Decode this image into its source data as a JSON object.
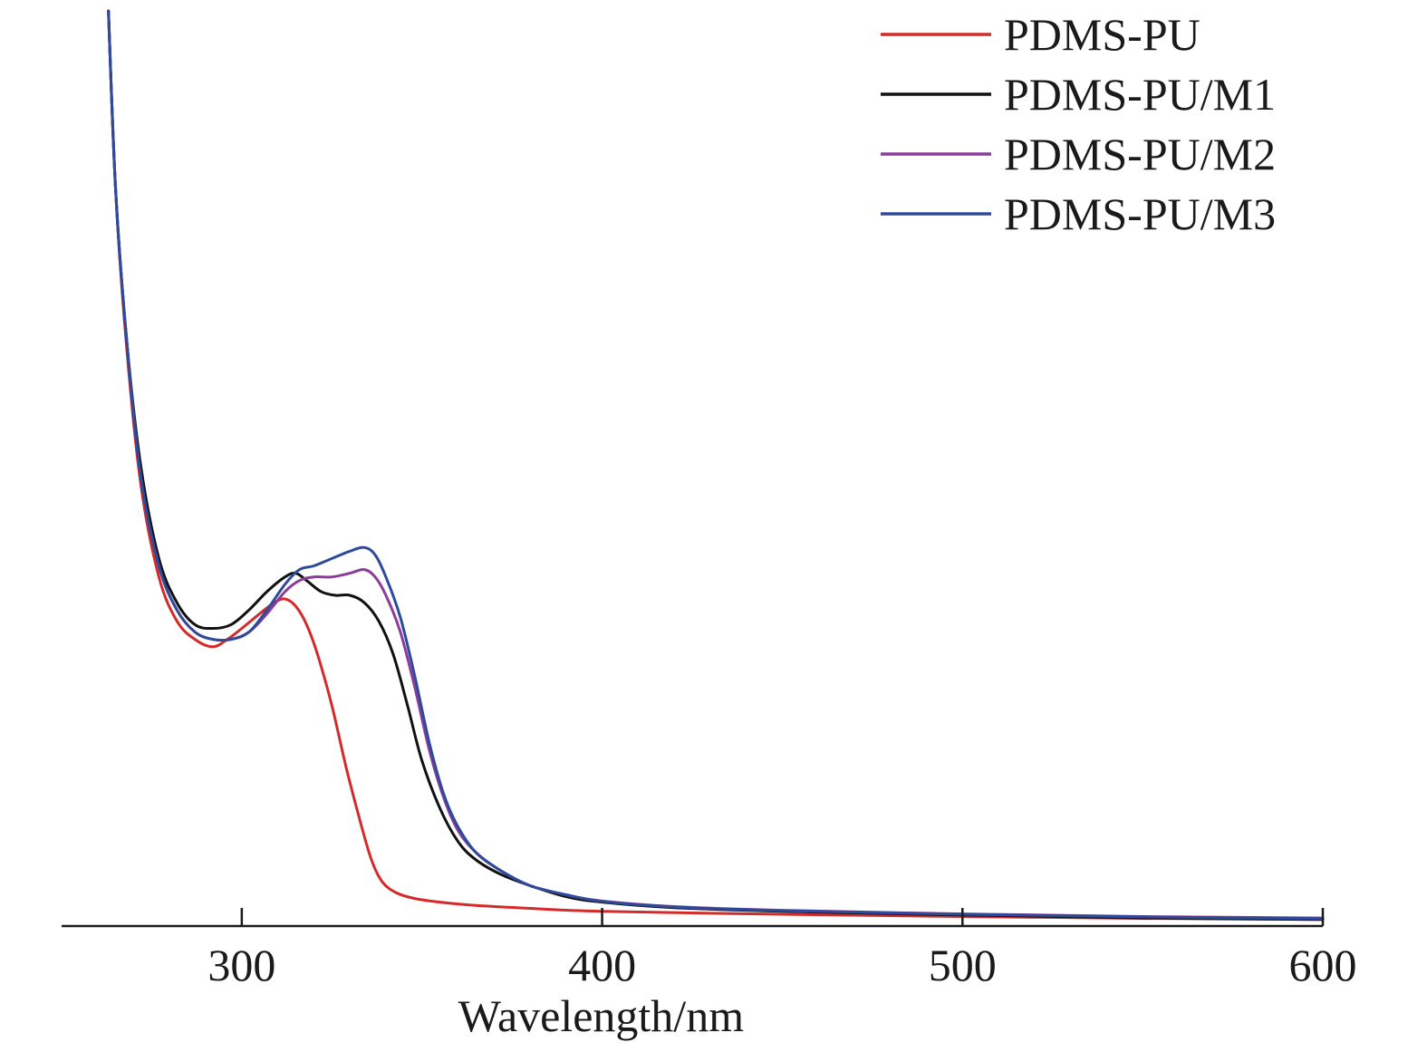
{
  "chart_data": {
    "type": "line",
    "title": "",
    "xlabel": "Wavelength/nm",
    "ylabel": "",
    "xlim": [
      250,
      600
    ],
    "ylim": [
      0,
      2.5
    ],
    "xticks": [
      300,
      400,
      500,
      600
    ],
    "xtick_labels": [
      "300",
      "400",
      "500",
      "600"
    ],
    "grid": false,
    "legend_position": "top-right",
    "series": [
      {
        "name": "PDMS-PU",
        "color": "#d42a2a",
        "x": [
          263,
          265,
          268,
          272,
          277,
          282,
          287,
          292,
          296,
          300,
          305,
          309,
          312,
          315,
          318,
          321,
          325,
          329,
          333,
          336,
          339,
          343,
          348,
          355,
          365,
          380,
          400,
          450,
          500,
          550,
          600
        ],
        "y": [
          2.49,
          2.0,
          1.58,
          1.2,
          0.95,
          0.83,
          0.78,
          0.76,
          0.78,
          0.81,
          0.85,
          0.88,
          0.89,
          0.87,
          0.82,
          0.74,
          0.6,
          0.43,
          0.28,
          0.18,
          0.12,
          0.09,
          0.075,
          0.065,
          0.056,
          0.048,
          0.04,
          0.032,
          0.026,
          0.021,
          0.018
        ]
      },
      {
        "name": "PDMS-PU/M1",
        "color": "#111111",
        "x": [
          263,
          265,
          268,
          272,
          277,
          282,
          287,
          292,
          297,
          302,
          307,
          312,
          315,
          318,
          322,
          326,
          330,
          334,
          338,
          342,
          346,
          350,
          355,
          360,
          365,
          372,
          380,
          390,
          400,
          420,
          450,
          500,
          550,
          600
        ],
        "y": [
          2.49,
          2.0,
          1.6,
          1.25,
          1.0,
          0.88,
          0.82,
          0.81,
          0.82,
          0.86,
          0.91,
          0.95,
          0.96,
          0.94,
          0.91,
          0.9,
          0.9,
          0.88,
          0.83,
          0.74,
          0.6,
          0.45,
          0.32,
          0.23,
          0.18,
          0.14,
          0.11,
          0.08,
          0.065,
          0.05,
          0.04,
          0.03,
          0.022,
          0.018
        ]
      },
      {
        "name": "PDMS-PU/M2",
        "color": "#8c3c9a",
        "x": [
          263,
          265,
          268,
          272,
          277,
          282,
          287,
          292,
          297,
          302,
          307,
          312,
          316,
          320,
          325,
          330,
          334,
          337,
          340,
          344,
          348,
          352,
          356,
          360,
          365,
          372,
          380,
          390,
          400,
          420,
          450,
          500,
          550,
          600
        ],
        "y": [
          2.49,
          2.0,
          1.6,
          1.22,
          0.98,
          0.86,
          0.8,
          0.78,
          0.78,
          0.8,
          0.85,
          0.91,
          0.94,
          0.95,
          0.95,
          0.96,
          0.97,
          0.95,
          0.9,
          0.8,
          0.65,
          0.48,
          0.35,
          0.26,
          0.2,
          0.15,
          0.11,
          0.085,
          0.068,
          0.053,
          0.043,
          0.033,
          0.026,
          0.022
        ]
      },
      {
        "name": "PDMS-PU/M3",
        "color": "#2e4a9a",
        "x": [
          263,
          265,
          268,
          272,
          277,
          282,
          287,
          292,
          297,
          302,
          307,
          312,
          316,
          320,
          325,
          330,
          334,
          337,
          340,
          344,
          348,
          352,
          356,
          360,
          365,
          372,
          380,
          390,
          400,
          420,
          450,
          500,
          550,
          600
        ],
        "y": [
          2.49,
          2.0,
          1.6,
          1.22,
          0.98,
          0.86,
          0.8,
          0.78,
          0.78,
          0.8,
          0.86,
          0.93,
          0.97,
          0.98,
          1.0,
          1.02,
          1.03,
          1.01,
          0.95,
          0.84,
          0.68,
          0.5,
          0.36,
          0.27,
          0.2,
          0.15,
          0.11,
          0.085,
          0.067,
          0.052,
          0.042,
          0.032,
          0.025,
          0.02
        ]
      }
    ]
  }
}
